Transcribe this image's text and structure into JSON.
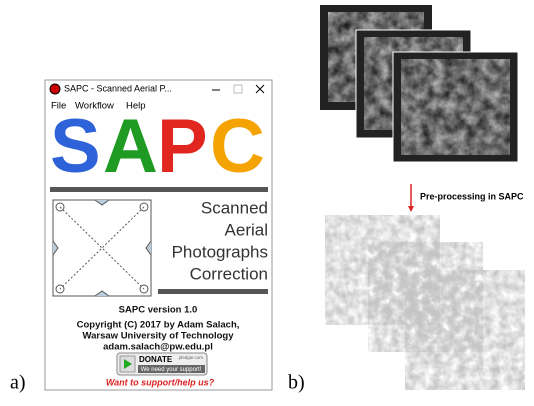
{
  "labels": {
    "a": "a)",
    "b": "b)"
  },
  "window": {
    "title": "SAPC - Scanned Aerial P...",
    "menu": [
      "File",
      "Workflow",
      "Help"
    ],
    "logo": [
      "S",
      "A",
      "P",
      "C"
    ],
    "side_text": [
      "Scanned",
      "Aerial",
      "Photographs",
      "Correction"
    ],
    "version": "SAPC version 1.0",
    "copyright": [
      "Copyright (C) 2017 by Adam Salach,",
      "Warsaw University of Technology",
      "adam.salach@pw.edu.pl"
    ],
    "donate": {
      "label": "DONATE",
      "site": "pledgie.com",
      "sub": "We need your support!"
    },
    "support": "Want to support/help us?"
  },
  "arrow_label": "Pre-processing in SAPC"
}
